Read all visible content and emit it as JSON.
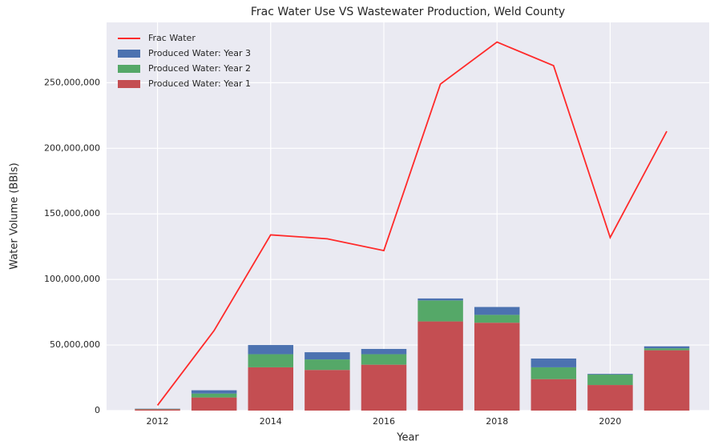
{
  "chart_data": {
    "type": "bar",
    "title": "Frac Water Use VS Wastewater Production, Weld County",
    "x_label": "Year",
    "y_label": "Water Volume (BBls)",
    "x": [
      2012,
      2013,
      2014,
      2015,
      2016,
      2017,
      2018,
      2019,
      2020,
      2021
    ],
    "stacked": true,
    "bar_width": 0.8,
    "series": [
      {
        "name": "Frac Water",
        "type": "line",
        "color": "#ff2a2a",
        "values": [
          4000000,
          61000000,
          134000000,
          131000000,
          122000000,
          249000000,
          281000000,
          263000000,
          132000000,
          213000000
        ]
      },
      {
        "name": "Produced Water: Year 3",
        "type": "bar",
        "color": "#4c72b0",
        "values": [
          200000,
          2500000,
          7000000,
          5500000,
          4000000,
          1500000,
          6000000,
          6700000,
          500000,
          1500000
        ]
      },
      {
        "name": "Produced Water: Year 2",
        "type": "bar",
        "color": "#55a868",
        "values": [
          300000,
          3000000,
          10000000,
          8000000,
          8000000,
          16000000,
          6000000,
          9000000,
          8000000,
          1500000
        ]
      },
      {
        "name": "Produced Water: Year 1",
        "type": "bar",
        "color": "#c44e52",
        "values": [
          1000000,
          10000000,
          33000000,
          31000000,
          35000000,
          68000000,
          67000000,
          24000000,
          19500000,
          46000000
        ]
      }
    ],
    "xlim": [
      2011.1,
      2021.75
    ],
    "ylim": [
      0,
      296000000
    ],
    "xticks": [
      2012,
      2014,
      2016,
      2018,
      2020
    ],
    "yticks": [
      0,
      {
        "value": 50000000,
        "label": "50,000,000"
      },
      {
        "value": 100000000,
        "label": "100,000,000"
      },
      {
        "value": 150000000,
        "label": "150,000,000"
      },
      {
        "value": 200000000,
        "label": "200,000,000"
      },
      {
        "value": 250000000,
        "label": "250,000,000"
      }
    ],
    "grid": true,
    "legend_loc": "upper left"
  }
}
